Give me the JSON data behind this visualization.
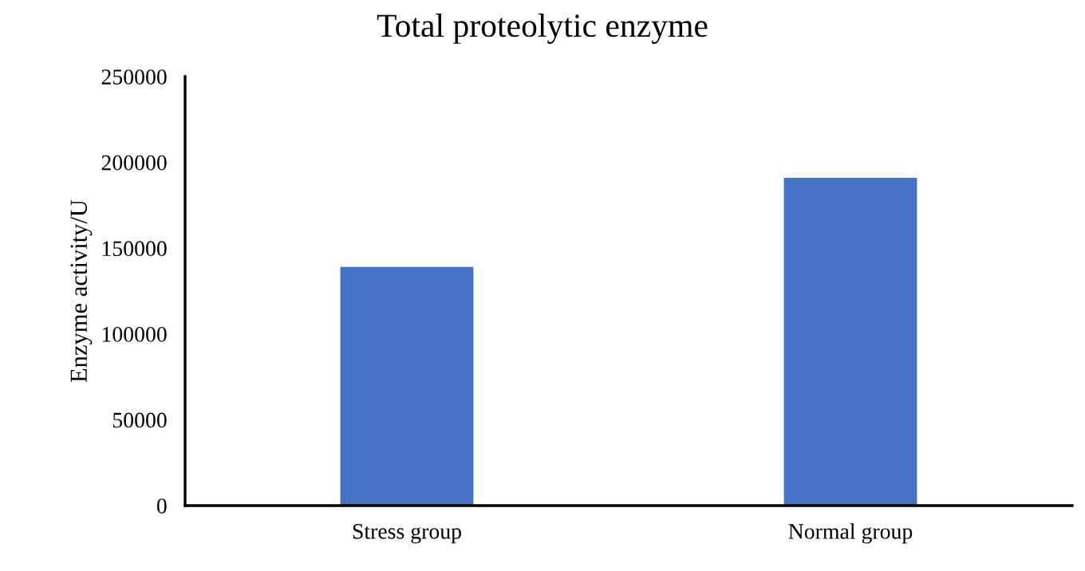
{
  "chart_data": {
    "type": "bar",
    "title": "Total proteolytic enzyme",
    "ylabel": "Enzyme activity/U",
    "categories": [
      "Stress group",
      "Normal group"
    ],
    "values": [
      139000,
      191000
    ],
    "color": "#4472c4",
    "ylim": [
      0,
      250000
    ],
    "yticks": [
      0,
      50000,
      100000,
      150000,
      200000,
      250000
    ],
    "grid": false,
    "legend": false
  }
}
